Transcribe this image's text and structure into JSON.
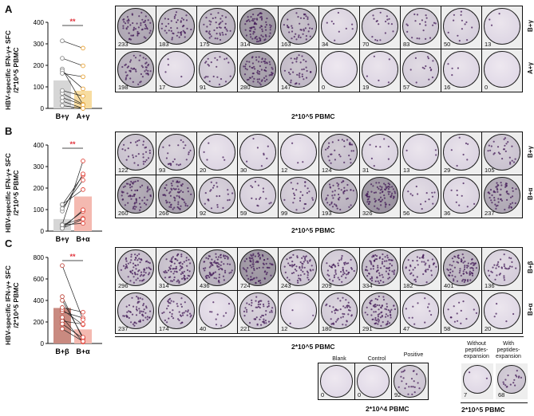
{
  "panels": [
    {
      "letter": "A",
      "ylabel_line1": "HBV-specific IFN-γ+ SFC",
      "ylabel_line2": "/2*10^5 PBMC",
      "yticks": [
        "0",
        "100",
        "200",
        "300",
        "400"
      ],
      "ymax": 400,
      "groups": [
        "B+γ",
        "A+γ"
      ],
      "bar_means": [
        130,
        82
      ],
      "bar_colors": [
        "#d6d6d6",
        "#f7dca0"
      ],
      "sig": "**",
      "pairs": [
        [
          233,
          198
        ],
        [
          183,
          17
        ],
        [
          175,
          91
        ],
        [
          314,
          280
        ],
        [
          163,
          147
        ],
        [
          34,
          0
        ],
        [
          70,
          19
        ],
        [
          83,
          57
        ],
        [
          50,
          16
        ],
        [
          13,
          0
        ]
      ],
      "row_labels": [
        "B+γ",
        "A+γ"
      ],
      "row1": [
        233,
        183,
        175,
        314,
        163,
        34,
        70,
        83,
        50,
        13
      ],
      "row2": [
        198,
        17,
        91,
        280,
        147,
        0,
        19,
        57,
        16,
        0
      ],
      "footer": "2*10^5 PBMC"
    },
    {
      "letter": "B",
      "ylabel_line1": "HBV-specific IFN-γ+ SFC",
      "ylabel_line2": "/2*10^5 PBMC",
      "yticks": [
        "0",
        "100",
        "200",
        "300",
        "400"
      ],
      "ymax": 400,
      "groups": [
        "B+γ",
        "B+α"
      ],
      "bar_means": [
        56,
        161
      ],
      "bar_colors": [
        "#d6d6d6",
        "#f4b9b0"
      ],
      "sig": "**",
      "pairs": [
        [
          122,
          260
        ],
        [
          93,
          266
        ],
        [
          20,
          92
        ],
        [
          30,
          59
        ],
        [
          12,
          99
        ],
        [
          124,
          193
        ],
        [
          31,
          326
        ],
        [
          13,
          56
        ],
        [
          29,
          36
        ],
        [
          105,
          237
        ]
      ],
      "row_labels": [
        "B+γ",
        "B+α"
      ],
      "row1": [
        122,
        93,
        20,
        30,
        12,
        124,
        31,
        13,
        29,
        105
      ],
      "row2": [
        260,
        266,
        92,
        59,
        99,
        193,
        326,
        56,
        36,
        237
      ],
      "footer": "2*10^5 PBMC"
    },
    {
      "letter": "C",
      "ylabel_line1": "HBV-specific IFN-γ+ SFC",
      "ylabel_line2": "/2*10^5 PBMC",
      "yticks": [
        "0",
        "200",
        "400",
        "600",
        "800"
      ],
      "ymax": 800,
      "groups": [
        "B+β",
        "B+α"
      ],
      "bar_means": [
        330,
        131
      ],
      "bar_colors": [
        "#c98a80",
        "#f4b9b0"
      ],
      "sig": "**",
      "pairs": [
        [
          296,
          237
        ],
        [
          314,
          174
        ],
        [
          436,
          40
        ],
        [
          724,
          221
        ],
        [
          243,
          12
        ],
        [
          209,
          180
        ],
        [
          334,
          291
        ],
        [
          182,
          47
        ],
        [
          401,
          58
        ],
        [
          136,
          20
        ]
      ],
      "row_labels": [
        "B+β",
        "B+α"
      ],
      "row1": [
        296,
        314,
        436,
        724,
        243,
        209,
        334,
        182,
        401,
        136
      ],
      "row2": [
        237,
        174,
        40,
        221,
        12,
        180,
        291,
        47,
        58,
        20
      ],
      "footer": "2*10^5 PBMC"
    }
  ],
  "controls": {
    "labels": [
      "Blank",
      "Control",
      "Positive"
    ],
    "counts": [
      "0",
      "0",
      "92"
    ],
    "footer": "2*10^4 PBMC"
  },
  "expansion": {
    "labels": [
      "Without peptides-expansion",
      "With peptides-expansion"
    ],
    "counts": [
      "7",
      "68"
    ],
    "footer": "2*10^5 PBMC"
  }
}
